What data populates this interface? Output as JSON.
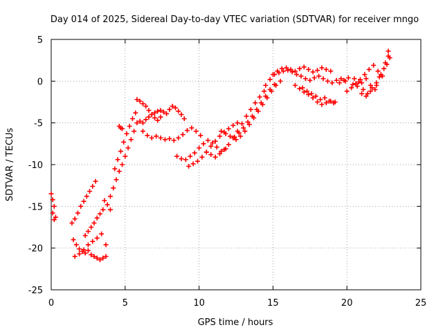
{
  "chart_data": {
    "type": "scatter",
    "title": "Day 014 of 2025, Sidereal Day-to-day VTEC variation (SDTVAR) for receiver mngo",
    "xlabel": "GPS time / hours",
    "ylabel": "SDTVAR / TECUs",
    "xlim": [
      0,
      25
    ],
    "ylim": [
      -25,
      5
    ],
    "xticks": [
      "0",
      "5",
      "10",
      "15",
      "20",
      "25"
    ],
    "yticks": [
      "5",
      "0",
      "-5",
      "-10",
      "-15",
      "-20",
      "-25"
    ],
    "grid": true,
    "marker": "+",
    "color": "#ff0000",
    "series": [
      {
        "name": "SDTVAR",
        "x": [
          0.0,
          0.1,
          0.2,
          0.3,
          0.1,
          0.2,
          1.4,
          1.6,
          1.8,
          2.0,
          2.2,
          2.4,
          2.6,
          2.8,
          3.0,
          1.5,
          1.7,
          1.9,
          2.1,
          2.3,
          2.5,
          2.7,
          2.9,
          3.1,
          3.3,
          3.5,
          3.7,
          1.6,
          1.9,
          2.2,
          2.5,
          2.8,
          3.1,
          3.4,
          3.7,
          2.3,
          2.5,
          2.7,
          2.9,
          3.1,
          3.3,
          3.5,
          3.6,
          3.8,
          4.0,
          4.0,
          4.2,
          4.4,
          4.6,
          4.8,
          5.0,
          5.2,
          5.4,
          5.6,
          5.8,
          4.3,
          4.5,
          4.7,
          4.9,
          5.1,
          5.3,
          5.5,
          5.7,
          4.6,
          4.7,
          4.8,
          5.8,
          6.0,
          6.2,
          6.4,
          6.6,
          6.8,
          7.0,
          7.2,
          7.4,
          6.0,
          6.2,
          6.4,
          6.6,
          6.8,
          7.0,
          7.2,
          7.4,
          7.6,
          7.8,
          8.0,
          8.2,
          8.4,
          8.6,
          8.8,
          9.0,
          6.2,
          6.5,
          6.8,
          7.1,
          7.4,
          7.7,
          8.0,
          8.3,
          8.6,
          8.9,
          9.2,
          9.5,
          9.8,
          10.1,
          8.5,
          8.8,
          9.1,
          9.4,
          9.7,
          10.0,
          10.3,
          10.6,
          10.9,
          11.2,
          11.5,
          11.8,
          9.3,
          9.6,
          9.9,
          10.2,
          10.5,
          10.8,
          11.1,
          11.4,
          11.7,
          12.0,
          12.3,
          12.6,
          10.5,
          10.8,
          11.1,
          11.4,
          11.7,
          12.0,
          12.3,
          12.6,
          12.9,
          13.2,
          13.5,
          13.8,
          14.1,
          14.4,
          11.5,
          11.8,
          12.1,
          12.4,
          12.7,
          13.0,
          13.3,
          13.6,
          13.9,
          14.2,
          14.5,
          14.8,
          15.1,
          12.5,
          12.8,
          13.1,
          13.4,
          13.7,
          14.0,
          14.3,
          14.6,
          14.9,
          15.2,
          15.5,
          14.5,
          14.8,
          15.1,
          15.4,
          15.7,
          16.0,
          16.3,
          16.6,
          16.9,
          17.2,
          17.5,
          17.8,
          18.1,
          18.4,
          18.7,
          19.0,
          19.3,
          19.6,
          19.9,
          15.0,
          15.3,
          15.6,
          15.9,
          16.2,
          16.5,
          16.8,
          17.1,
          17.4,
          17.7,
          18.0,
          18.3,
          18.6,
          18.9,
          16.5,
          16.8,
          17.1,
          17.4,
          17.7,
          18.0,
          18.3,
          18.6,
          18.9,
          19.2,
          17.0,
          17.3,
          17.6,
          17.9,
          18.2,
          18.5,
          18.8,
          19.1,
          19.5,
          19.8,
          20.1,
          20.4,
          20.7,
          21.0,
          21.3,
          21.6,
          21.9,
          22.2,
          22.5,
          22.8,
          20.0,
          20.3,
          20.6,
          20.9,
          21.2,
          21.5,
          21.8,
          22.1,
          22.4,
          22.7,
          22.9,
          20.5,
          20.8,
          21.1,
          21.4,
          21.7,
          22.0,
          21.0,
          21.3,
          21.6,
          22.0,
          22.3,
          22.6,
          22.8
        ],
        "y": [
          -13.5,
          -14.2,
          -15.0,
          -16.3,
          -15.8,
          -16.6,
          -17.0,
          -16.5,
          -15.8,
          -15.0,
          -14.4,
          -13.8,
          -13.2,
          -12.6,
          -12.0,
          -19.0,
          -19.6,
          -20.1,
          -20.4,
          -20.6,
          -20.3,
          -20.8,
          -21.0,
          -21.2,
          -21.4,
          -21.2,
          -21.0,
          -21.0,
          -20.7,
          -20.2,
          -19.6,
          -19.2,
          -18.8,
          -18.3,
          -19.6,
          -18.5,
          -18.0,
          -17.5,
          -17.0,
          -16.4,
          -15.9,
          -15.4,
          -14.3,
          -14.8,
          -15.4,
          -13.8,
          -12.8,
          -11.8,
          -10.8,
          -10.0,
          -9.0,
          -8.0,
          -7.0,
          -6.0,
          -5.0,
          -10.5,
          -9.4,
          -8.4,
          -7.3,
          -6.3,
          -5.4,
          -4.5,
          -3.8,
          -5.4,
          -5.6,
          -5.7,
          -2.2,
          -2.4,
          -2.7,
          -3.0,
          -3.5,
          -4.0,
          -4.4,
          -4.7,
          -4.3,
          -4.8,
          -5.0,
          -4.6,
          -4.3,
          -4.0,
          -3.8,
          -3.6,
          -3.5,
          -3.7,
          -3.9,
          -3.4,
          -3.0,
          -3.2,
          -3.6,
          -4.0,
          -4.5,
          -6.0,
          -6.5,
          -6.8,
          -6.6,
          -6.8,
          -7.0,
          -6.9,
          -7.1,
          -6.8,
          -6.4,
          -5.9,
          -5.6,
          -6.0,
          -6.5,
          -9.0,
          -9.3,
          -9.4,
          -9.0,
          -8.6,
          -8.0,
          -7.5,
          -7.1,
          -7.4,
          -7.9,
          -8.4,
          -8.1,
          -10.2,
          -9.9,
          -9.6,
          -9.1,
          -8.5,
          -7.8,
          -7.2,
          -6.6,
          -6.1,
          -5.7,
          -5.3,
          -5.0,
          -8.5,
          -8.8,
          -9.1,
          -8.7,
          -8.2,
          -7.6,
          -6.8,
          -6.0,
          -5.1,
          -4.2,
          -3.4,
          -2.6,
          -1.9,
          -1.2,
          -6.0,
          -6.3,
          -6.6,
          -6.7,
          -6.2,
          -5.6,
          -4.9,
          -4.2,
          -3.4,
          -2.6,
          -1.8,
          -1.0,
          -0.4,
          -7.0,
          -6.6,
          -6.0,
          -5.2,
          -4.4,
          -3.6,
          -2.8,
          -2.0,
          -1.2,
          -0.5,
          0.0,
          -0.5,
          0.2,
          0.8,
          1.0,
          1.2,
          1.3,
          1.1,
          0.8,
          0.6,
          0.3,
          0.1,
          0.4,
          0.6,
          0.3,
          0.0,
          -0.2,
          0.1,
          0.3,
          0.0,
          0.8,
          1.2,
          1.5,
          1.6,
          1.4,
          1.2,
          1.5,
          1.7,
          1.4,
          1.1,
          1.3,
          1.6,
          1.4,
          1.2,
          -0.5,
          -0.9,
          -1.3,
          -1.6,
          -2.0,
          -2.5,
          -2.8,
          -2.6,
          -2.4,
          -2.5,
          -0.8,
          -1.2,
          -1.5,
          -1.8,
          -2.2,
          -2.0,
          -2.4,
          -2.6,
          -0.2,
          0.1,
          0.4,
          -0.4,
          -0.6,
          -0.2,
          0.3,
          -0.5,
          -1.0,
          0.5,
          1.5,
          3.6,
          -1.2,
          -0.8,
          -0.3,
          0.2,
          0.8,
          1.4,
          1.9,
          1.2,
          0.6,
          2.0,
          2.8,
          0.3,
          -0.1,
          -1.0,
          -1.5,
          -0.8,
          -0.2,
          -1.5,
          -1.8,
          -1.2,
          -0.5,
          0.8,
          2.2,
          3.0
        ]
      }
    ]
  }
}
